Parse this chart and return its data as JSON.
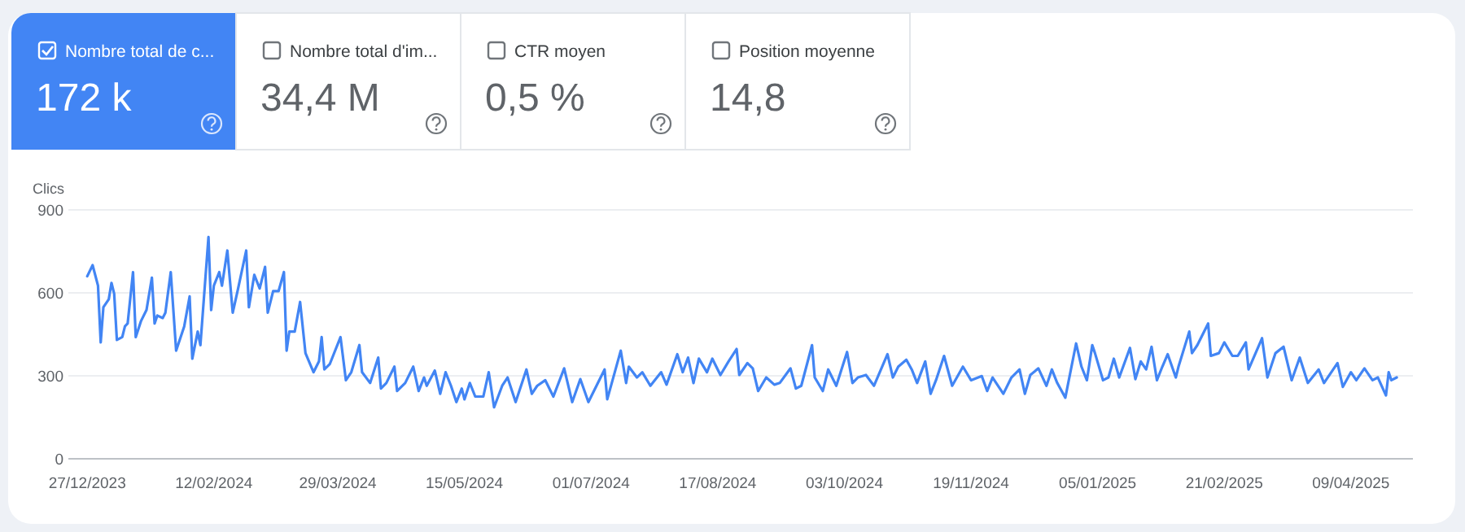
{
  "chart_data": [
    {
      "type": "other",
      "annotations": [
        "Nombre total de c...",
        "172 k",
        "Nombre total d'im...",
        "34,4 M",
        "CTR moyen",
        "0,5 %",
        "Position moyenne",
        "14,8"
      ]
    },
    {
      "type": "line",
      "ylabel": "Clics",
      "grid": "y",
      "marker": "none",
      "line_style": "solid",
      "xlim": [
        "2023-12-20",
        "2025-05-02"
      ],
      "xticks": [
        {
          "value": "2023-12-27",
          "label": "27/12/2023"
        },
        {
          "value": "2024-02-12",
          "label": "12/02/2024"
        },
        {
          "value": "2024-03-29",
          "label": "29/03/2024"
        },
        {
          "value": "2024-05-15",
          "label": "15/05/2024"
        },
        {
          "value": "2024-07-01",
          "label": "01/07/2024"
        },
        {
          "value": "2024-08-17",
          "label": "17/08/2024"
        },
        {
          "value": "2024-10-03",
          "label": "03/10/2024"
        },
        {
          "value": "2024-11-19",
          "label": "19/11/2024"
        },
        {
          "value": "2025-01-05",
          "label": "05/01/2025"
        },
        {
          "value": "2025-02-21",
          "label": "21/02/2025"
        },
        {
          "value": "2025-04-09",
          "label": "09/04/2025"
        }
      ],
      "ylim": [
        0,
        900
      ],
      "yticks": [
        0,
        300,
        600,
        900
      ],
      "x": [
        "2023-12-27",
        "2023-12-29",
        "2023-12-31",
        "2024-01-01",
        "2024-01-02",
        "2024-01-04",
        "2024-01-05",
        "2024-01-06",
        "2024-01-07",
        "2024-01-09",
        "2024-01-10",
        "2024-01-11",
        "2024-01-13",
        "2024-01-14",
        "2024-01-16",
        "2024-01-18",
        "2024-01-20",
        "2024-01-21",
        "2024-01-22",
        "2024-01-24",
        "2024-01-25",
        "2024-01-27",
        "2024-01-29",
        "2024-02-01",
        "2024-02-03",
        "2024-02-04",
        "2024-02-06",
        "2024-02-07",
        "2024-02-10",
        "2024-02-11",
        "2024-02-12",
        "2024-02-14",
        "2024-02-15",
        "2024-02-17",
        "2024-02-19",
        "2024-02-21",
        "2024-02-24",
        "2024-02-25",
        "2024-02-27",
        "2024-02-29",
        "2024-03-02",
        "2024-03-03",
        "2024-03-05",
        "2024-03-07",
        "2024-03-09",
        "2024-03-10",
        "2024-03-11",
        "2024-03-13",
        "2024-03-15",
        "2024-03-17",
        "2024-03-20",
        "2024-03-22",
        "2024-03-23",
        "2024-03-24",
        "2024-03-26",
        "2024-03-30",
        "2024-04-01",
        "2024-04-03",
        "2024-04-06",
        "2024-04-07",
        "2024-04-10",
        "2024-04-13",
        "2024-04-14",
        "2024-04-16",
        "2024-04-19",
        "2024-04-20",
        "2024-04-23",
        "2024-04-26",
        "2024-04-28",
        "2024-04-30",
        "2024-05-01",
        "2024-05-04",
        "2024-05-06",
        "2024-05-08",
        "2024-05-10",
        "2024-05-12",
        "2024-05-14",
        "2024-05-15",
        "2024-05-17",
        "2024-05-19",
        "2024-05-22",
        "2024-05-24",
        "2024-05-26",
        "2024-05-29",
        "2024-05-31",
        "2024-06-03",
        "2024-06-07",
        "2024-06-09",
        "2024-06-11",
        "2024-06-14",
        "2024-06-17",
        "2024-06-21",
        "2024-06-24",
        "2024-06-27",
        "2024-06-30",
        "2024-07-03",
        "2024-07-06",
        "2024-07-07",
        "2024-07-12",
        "2024-07-14",
        "2024-07-15",
        "2024-07-18",
        "2024-07-20",
        "2024-07-23",
        "2024-07-27",
        "2024-07-29",
        "2024-08-02",
        "2024-08-04",
        "2024-08-06",
        "2024-08-08",
        "2024-08-10",
        "2024-08-13",
        "2024-08-15",
        "2024-08-18",
        "2024-08-21",
        "2024-08-24",
        "2024-08-25",
        "2024-08-28",
        "2024-08-30",
        "2024-09-01",
        "2024-09-04",
        "2024-09-07",
        "2024-09-09",
        "2024-09-13",
        "2024-09-15",
        "2024-09-17",
        "2024-09-21",
        "2024-09-22",
        "2024-09-25",
        "2024-09-27",
        "2024-09-30",
        "2024-10-04",
        "2024-10-06",
        "2024-10-08",
        "2024-10-11",
        "2024-10-14",
        "2024-10-19",
        "2024-10-21",
        "2024-10-23",
        "2024-10-26",
        "2024-10-28",
        "2024-10-30",
        "2024-11-02",
        "2024-11-04",
        "2024-11-06",
        "2024-11-09",
        "2024-11-12",
        "2024-11-16",
        "2024-11-19",
        "2024-11-23",
        "2024-11-25",
        "2024-11-27",
        "2024-12-01",
        "2024-12-04",
        "2024-12-07",
        "2024-12-09",
        "2024-12-11",
        "2024-12-14",
        "2024-12-17",
        "2024-12-19",
        "2024-12-21",
        "2024-12-24",
        "2024-12-28",
        "2024-12-30",
        "2025-01-01",
        "2025-01-03",
        "2025-01-04",
        "2025-01-07",
        "2025-01-09",
        "2025-01-11",
        "2025-01-13",
        "2025-01-17",
        "2025-01-19",
        "2025-01-21",
        "2025-01-23",
        "2025-01-25",
        "2025-01-27",
        "2025-01-29",
        "2025-01-31",
        "2025-02-03",
        "2025-02-04",
        "2025-02-08",
        "2025-02-09",
        "2025-02-11",
        "2025-02-15",
        "2025-02-16",
        "2025-02-19",
        "2025-02-21",
        "2025-02-24",
        "2025-02-26",
        "2025-03-01",
        "2025-03-02",
        "2025-03-07",
        "2025-03-09",
        "2025-03-12",
        "2025-03-15",
        "2025-03-18",
        "2025-03-21",
        "2025-03-24",
        "2025-03-28",
        "2025-03-30",
        "2025-04-04",
        "2025-04-06",
        "2025-04-09",
        "2025-04-11",
        "2025-04-14",
        "2025-04-17",
        "2025-04-19",
        "2025-04-22",
        "2025-04-23",
        "2025-04-24",
        "2025-04-26"
      ],
      "series": [
        {
          "color": "#4285f4",
          "values": [
            660,
            700,
            626,
            421,
            548,
            577,
            636,
            597,
            430,
            440,
            479,
            489,
            675,
            440,
            499,
            538,
            655,
            489,
            518,
            509,
            528,
            675,
            391,
            479,
            587,
            362,
            460,
            411,
            802,
            538,
            626,
            675,
            626,
            753,
            528,
            616,
            753,
            548,
            665,
            616,
            694,
            528,
            606,
            606,
            675,
            391,
            460,
            460,
            567,
            382,
            313,
            352,
            440,
            323,
            342,
            440,
            284,
            313,
            411,
            313,
            274,
            366,
            254,
            274,
            333,
            245,
            274,
            333,
            245,
            294,
            264,
            319,
            235,
            313,
            264,
            205,
            254,
            215,
            274,
            225,
            225,
            313,
            186,
            264,
            294,
            205,
            323,
            235,
            264,
            284,
            225,
            327,
            205,
            288,
            205,
            264,
            323,
            215,
            391,
            274,
            333,
            294,
            313,
            264,
            313,
            268,
            378,
            313,
            366,
            274,
            362,
            313,
            362,
            303,
            352,
            397,
            303,
            346,
            327,
            245,
            294,
            268,
            274,
            327,
            254,
            264,
            411,
            294,
            245,
            323,
            264,
            386,
            274,
            294,
            303,
            264,
            378,
            294,
            333,
            358,
            323,
            274,
            352,
            235,
            284,
            372,
            264,
            333,
            284,
            299,
            245,
            294,
            235,
            294,
            323,
            235,
            303,
            327,
            264,
            323,
            274,
            221,
            417,
            333,
            284,
            411,
            382,
            284,
            294,
            362,
            294,
            401,
            288,
            352,
            323,
            405,
            284,
            333,
            378,
            294,
            333,
            460,
            382,
            411,
            489,
            372,
            382,
            421,
            372,
            372,
            421,
            323,
            436,
            294,
            382,
            405,
            284,
            366,
            274,
            323,
            274,
            346,
            260,
            313,
            284,
            327,
            284,
            294,
            229,
            313,
            284,
            294
          ]
        }
      ]
    }
  ]
}
